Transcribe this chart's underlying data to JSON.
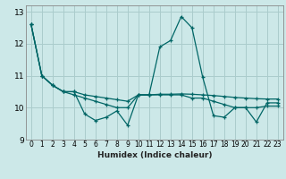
{
  "xlabel": "Humidex (Indice chaleur)",
  "background_color": "#cce8e8",
  "grid_color": "#aacccc",
  "line_color": "#006666",
  "xlim": [
    -0.5,
    23.5
  ],
  "ylim": [
    9.0,
    13.2
  ],
  "yticks": [
    9,
    10,
    11,
    12,
    13
  ],
  "xticks": [
    0,
    1,
    2,
    3,
    4,
    5,
    6,
    7,
    8,
    9,
    10,
    11,
    12,
    13,
    14,
    15,
    16,
    17,
    18,
    19,
    20,
    21,
    22,
    23
  ],
  "series": [
    [
      12.6,
      11.0,
      10.7,
      10.5,
      10.5,
      9.8,
      9.6,
      9.7,
      9.9,
      9.45,
      10.4,
      10.4,
      11.9,
      12.1,
      12.85,
      12.5,
      10.95,
      9.75,
      9.7,
      10.0,
      10.0,
      9.55,
      10.15,
      10.15
    ],
    [
      12.6,
      11.0,
      10.7,
      10.5,
      10.4,
      10.3,
      10.2,
      10.1,
      10.0,
      10.0,
      10.4,
      10.4,
      10.4,
      10.4,
      10.4,
      10.3,
      10.3,
      10.2,
      10.1,
      10.0,
      10.0,
      10.0,
      10.05,
      10.05
    ],
    [
      12.6,
      11.0,
      10.7,
      10.5,
      10.5,
      10.4,
      10.35,
      10.3,
      10.25,
      10.2,
      10.4,
      10.4,
      10.42,
      10.42,
      10.43,
      10.42,
      10.4,
      10.38,
      10.35,
      10.32,
      10.3,
      10.28,
      10.27,
      10.27
    ]
  ]
}
